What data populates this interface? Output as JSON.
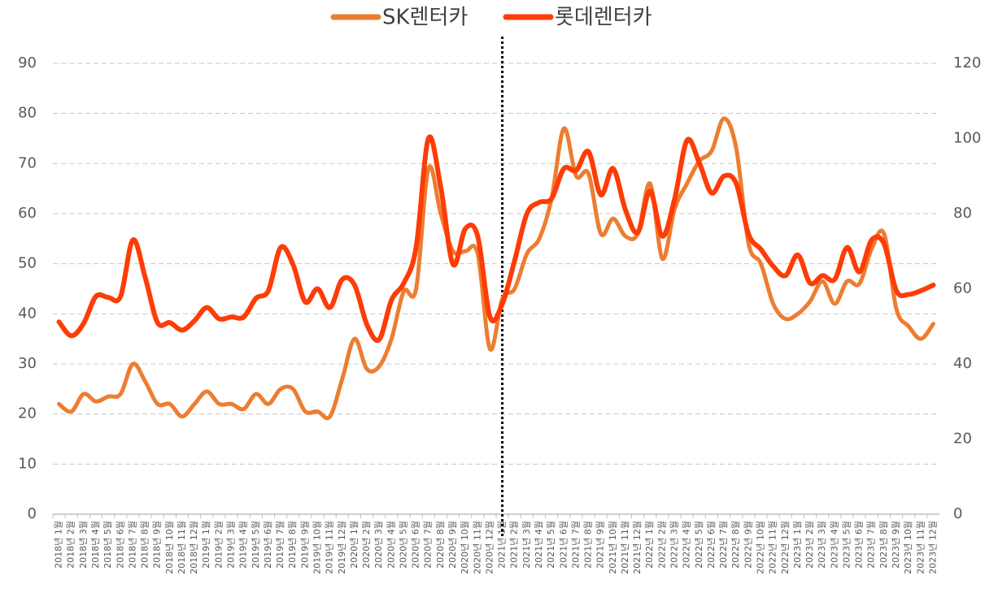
{
  "chart_data": {
    "type": "line",
    "categories": [
      "2018년 1월",
      "2018년 2월",
      "2018년 3월",
      "2018년 4월",
      "2018년 5월",
      "2018년 6월",
      "2018년 7월",
      "2018년 8월",
      "2018년 9월",
      "2018년 10월",
      "2018년 11월",
      "2018년 12월",
      "2019년 1월",
      "2019년 2월",
      "2019년 3월",
      "2019년 4월",
      "2019년 5월",
      "2019년 6월",
      "2019년 7월",
      "2019년 8월",
      "2019년 9월",
      "2019년 10월",
      "2019년 11월",
      "2019년 12월",
      "2020년 1월",
      "2020년 2월",
      "2020년 3월",
      "2020년 4월",
      "2020년 5월",
      "2020년 6월",
      "2020년 7월",
      "2020년 8월",
      "2020년 9월",
      "2020년 10월",
      "2020년 11월",
      "2020년 12월",
      "2021년 1월",
      "2021년 2월",
      "2021년 3월",
      "2021년 4월",
      "2021년 5월",
      "2021년 6월",
      "2021년 7월",
      "2021년 8월",
      "2021년 9월",
      "2021년 10월",
      "2021년 11월",
      "2021년 12월",
      "2022년 1월",
      "2022년 2월",
      "2022년 3월",
      "2022년 4월",
      "2022년 5월",
      "2022년 6월",
      "2022년 7월",
      "2022년 8월",
      "2022년 9월",
      "2022년 10월",
      "2022년 11월",
      "2022년 12월",
      "2023년 1월",
      "2023년 2월",
      "2023년 3월",
      "2023년 4월",
      "2023년 5월",
      "2023년 6월",
      "2023년 7월",
      "2023년 8월",
      "2023년 9월",
      "2023년 10월",
      "2023년 11월",
      "2023년 12월"
    ],
    "series": [
      {
        "name": "SK렌터카",
        "color": "#ed7d31",
        "values": [
          22,
          20.5,
          24,
          22.5,
          23.5,
          24,
          30,
          26.5,
          22,
          22,
          19.5,
          22,
          24.5,
          22,
          22,
          21,
          24,
          22,
          25,
          25,
          20.5,
          20.5,
          19.5,
          27,
          35,
          29,
          29.5,
          35,
          44.5,
          45,
          69,
          60,
          52.5,
          52.5,
          52,
          33,
          43,
          45,
          52,
          55,
          63,
          77,
          67.5,
          68,
          56,
          59,
          55.5,
          56,
          66,
          51,
          61,
          66,
          70.5,
          72.5,
          79,
          73,
          54,
          50,
          42,
          39,
          40,
          42.5,
          46.5,
          42,
          46.5,
          46,
          53,
          56,
          41,
          37.5,
          35,
          38
        ]
      },
      {
        "name": "롯데렌터카",
        "color": "#fe3c06",
        "axis": "y2",
        "values": [
          51.2,
          47.5,
          50.8,
          58,
          57.7,
          58,
          73,
          63,
          51,
          51,
          49,
          51.5,
          55,
          52,
          52.5,
          52.5,
          57.5,
          59.5,
          71,
          66.5,
          56.5,
          60,
          55,
          62.5,
          61,
          50.5,
          46.5,
          57,
          61.5,
          71,
          100,
          87,
          66.5,
          76,
          74,
          52.5,
          56,
          67.5,
          80,
          83,
          84,
          92,
          91.5,
          96.5,
          85,
          92,
          81,
          75,
          86,
          74,
          84,
          99.5,
          93.5,
          85.5,
          90,
          88,
          74.5,
          70.5,
          66,
          63.5,
          69,
          61.5,
          63.5,
          62.5,
          71,
          64.5,
          73,
          72,
          59.5,
          58.5,
          59.5,
          61
        ]
      }
    ],
    "ylim": [
      0,
      90
    ],
    "yticks": [
      0,
      10,
      20,
      30,
      40,
      50,
      60,
      70,
      80,
      90
    ],
    "y2lim": [
      0,
      120
    ],
    "y2ticks": [
      0,
      20,
      40,
      60,
      80,
      100,
      120
    ],
    "grid": true,
    "legend": "top",
    "annotations": [
      {
        "x": "2021년 1월",
        "style": "dotted"
      }
    ]
  }
}
